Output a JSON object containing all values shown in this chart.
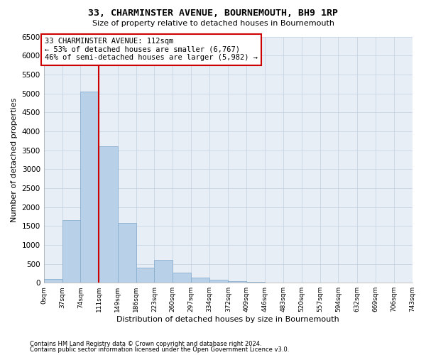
{
  "title": "33, CHARMINSTER AVENUE, BOURNEMOUTH, BH9 1RP",
  "subtitle": "Size of property relative to detached houses in Bournemouth",
  "xlabel": "Distribution of detached houses by size in Bournemouth",
  "ylabel": "Number of detached properties",
  "footnote1": "Contains HM Land Registry data © Crown copyright and database right 2024.",
  "footnote2": "Contains public sector information licensed under the Open Government Licence v3.0.",
  "property_label": "33 CHARMINSTER AVENUE: 112sqm",
  "annotation_line1": "← 53% of detached houses are smaller (6,767)",
  "annotation_line2": "46% of semi-detached houses are larger (5,982) →",
  "bar_edges": [
    0,
    37,
    74,
    111,
    149,
    186,
    223,
    260,
    297,
    334,
    372,
    409,
    446,
    483,
    520,
    557,
    594,
    632,
    669,
    706,
    743
  ],
  "bar_heights": [
    100,
    1650,
    5050,
    3600,
    1580,
    400,
    600,
    270,
    140,
    80,
    50,
    30,
    0,
    0,
    0,
    0,
    0,
    0,
    0,
    0
  ],
  "bar_color": "#b8d0e8",
  "bar_edge_color": "#8ab0d0",
  "vline_x": 111,
  "vline_color": "#cc0000",
  "annotation_box_color": "#cc0000",
  "ylim": [
    0,
    6500
  ],
  "yticks": [
    0,
    500,
    1000,
    1500,
    2000,
    2500,
    3000,
    3500,
    4000,
    4500,
    5000,
    5500,
    6000,
    6500
  ],
  "grid_color": "#c8d4e4",
  "background_color": "#e8eef6"
}
